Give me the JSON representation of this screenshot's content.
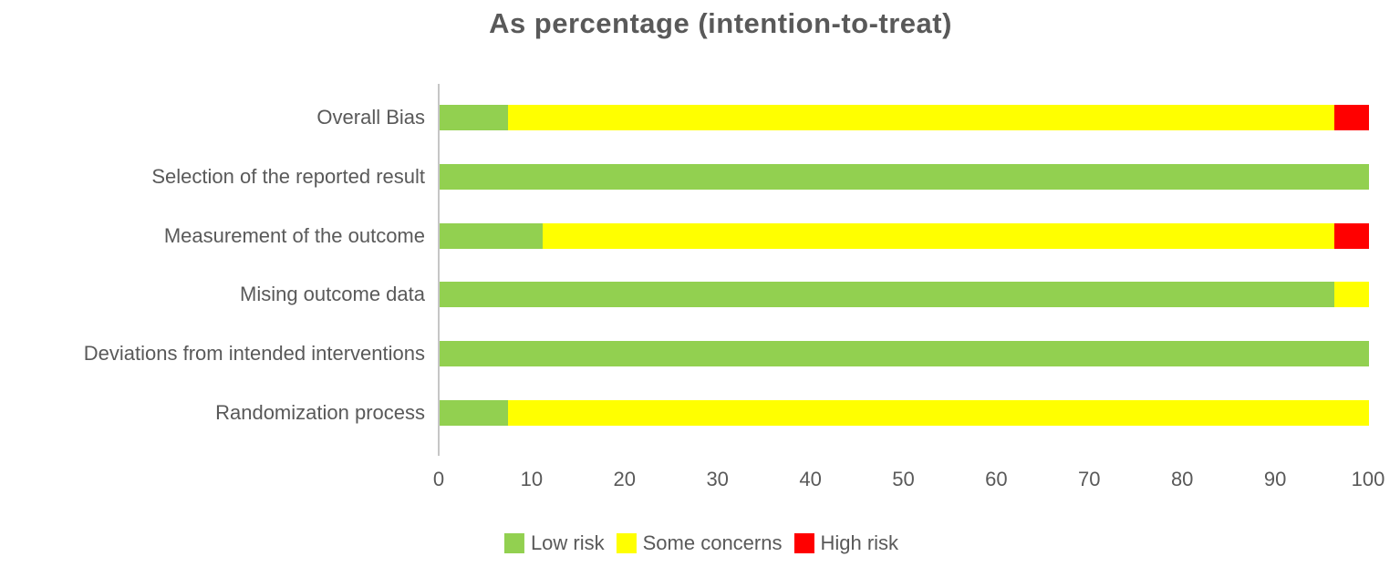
{
  "chart_data": {
    "type": "bar",
    "orientation": "horizontal",
    "stacked": true,
    "unit": "percent",
    "title": "As percentage (intention-to-treat)",
    "grid": false,
    "legend_position": "bottom",
    "categories_top_to_bottom": [
      "Overall Bias",
      "Selection of the reported result",
      "Measurement of the outcome",
      "Mising outcome data",
      "Deviations from intended interventions",
      "Randomization process"
    ],
    "series": [
      {
        "name": "Low risk",
        "color": "#92d050",
        "values": [
          7.4,
          100,
          11.1,
          96.3,
          100,
          7.4
        ]
      },
      {
        "name": "Some concerns",
        "color": "#ffff00",
        "values": [
          88.9,
          0,
          85.2,
          3.7,
          0,
          92.6
        ]
      },
      {
        "name": "High risk",
        "color": "#ff0000",
        "values": [
          3.7,
          0,
          3.7,
          0,
          0,
          0
        ]
      }
    ],
    "x_axis": {
      "min": 0,
      "max": 100,
      "tick_step": 10,
      "tick_labels": [
        "0",
        "10",
        "20",
        "30",
        "40",
        "50",
        "60",
        "70",
        "80",
        "90",
        "100"
      ]
    }
  },
  "colors": {
    "text": "#595959",
    "axis_line": "#c6c6c6",
    "background": "#ffffff",
    "low_risk": "#92d050",
    "some_concerns": "#ffff00",
    "high_risk": "#ff0000"
  }
}
